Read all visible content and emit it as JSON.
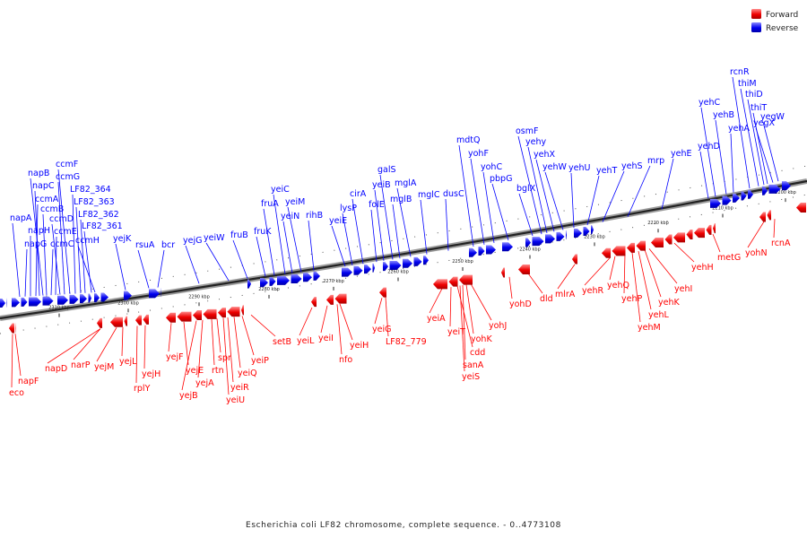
{
  "legend": {
    "forward_label": "Forward",
    "reverse_label": "Reverse",
    "forward_color": "#ff0000",
    "reverse_color": "#0000ff"
  },
  "caption": "Escherichia coli LF82 chromosome, complete sequence. - 0..4773108",
  "scale": {
    "unit": "kbp",
    "ticks": [
      "2310 kbp",
      "2300 kbp",
      "2290 kbp",
      "2280 kbp",
      "2270 kbp",
      "2260 kbp",
      "2250 kbp",
      "2240 kbp",
      "2230 kbp",
      "2220 kbp",
      "2210 kbp",
      "2200 kbp"
    ]
  },
  "genes": {
    "reverse": [
      "napA",
      "napG",
      "napH",
      "ccmA",
      "napC",
      "napB",
      "ccmB",
      "ccmC",
      "ccmE",
      "ccmD",
      "ccmG",
      "ccmF",
      "LF82_364",
      "LF82_363",
      "LF82_362",
      "LF82_361",
      "ccmH",
      "yejK",
      "rsuA",
      "bcr",
      "yejG",
      "yeiW",
      "fruB",
      "fruK",
      "fruA",
      "yeiC",
      "yeiN",
      "yeiM",
      "rihB",
      "yeiE",
      "lysP",
      "cirA",
      "folE",
      "yeiB",
      "galS",
      "mglB",
      "mglA",
      "mglC",
      "dusC",
      "mdtQ",
      "yohF",
      "yohC",
      "pbpG",
      "bglX",
      "osmF",
      "yehy",
      "yehX",
      "yehW",
      "yehU",
      "yehT",
      "yehS",
      "mrp",
      "yehE",
      "yehD",
      "yehC",
      "yehB",
      "yehA",
      "rcnR",
      "thiM",
      "thiD",
      "thiT",
      "yegX",
      "yegW"
    ],
    "forward": [
      "eco",
      "napF",
      "napD",
      "narP",
      "yejM",
      "yejL",
      "rplY",
      "yejH",
      "yejF",
      "yejE",
      "yejB",
      "yejA",
      "rtn",
      "spr",
      "yeiU",
      "yeiR",
      "yeiQ",
      "yeiP",
      "setB",
      "yeiL",
      "yeiI",
      "nfo",
      "yeiH",
      "yeiG",
      "LF82_779",
      "yeiA",
      "yeiT",
      "cdd",
      "sanA",
      "yeiS",
      "yohK",
      "yohJ",
      "yohD",
      "dld",
      "mlrA",
      "yehR",
      "yehQ",
      "yehP",
      "yehM",
      "yehL",
      "yehK",
      "yehI",
      "yehH",
      "metG",
      "yohN",
      "rcnA"
    ]
  }
}
